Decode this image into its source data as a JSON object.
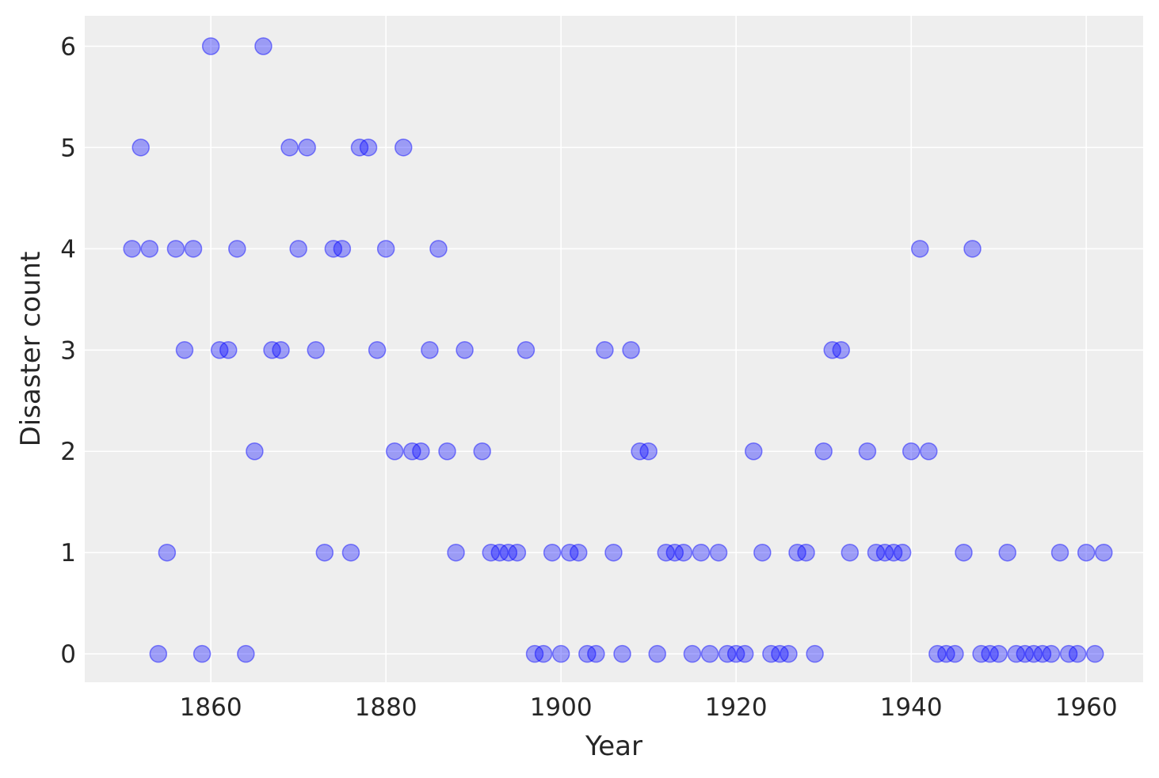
{
  "chart_data": {
    "type": "scatter",
    "title": "",
    "xlabel": "Year",
    "ylabel": "Disaster count",
    "xlim": [
      1845.6,
      1966.5
    ],
    "ylim": [
      -0.28,
      6.3
    ],
    "xticks": [
      1860,
      1880,
      1900,
      1920,
      1940,
      1960
    ],
    "yticks": [
      0,
      1,
      2,
      3,
      4,
      5,
      6
    ],
    "grid": true,
    "marker_color": "#0000ff",
    "marker_alpha": 0.35,
    "background": "#eeeeee",
    "x_start": 1851,
    "y": [
      4,
      5,
      4,
      0,
      1,
      4,
      3,
      4,
      0,
      6,
      3,
      3,
      4,
      0,
      2,
      6,
      3,
      3,
      5,
      4,
      5,
      3,
      1,
      4,
      4,
      1,
      5,
      5,
      3,
      4,
      2,
      5,
      2,
      2,
      3,
      4,
      2,
      1,
      3,
      null,
      2,
      1,
      1,
      1,
      1,
      3,
      0,
      0,
      1,
      0,
      1,
      1,
      0,
      0,
      3,
      1,
      0,
      3,
      2,
      2,
      0,
      1,
      1,
      1,
      0,
      1,
      0,
      1,
      0,
      0,
      0,
      2,
      1,
      0,
      0,
      0,
      1,
      1,
      0,
      2,
      3,
      3,
      1,
      null,
      2,
      1,
      1,
      1,
      1,
      2,
      4,
      2,
      0,
      0,
      0,
      1,
      4,
      0,
      0,
      0,
      1,
      0,
      0,
      0,
      0,
      0,
      1,
      0,
      0,
      1,
      0,
      1
    ]
  }
}
